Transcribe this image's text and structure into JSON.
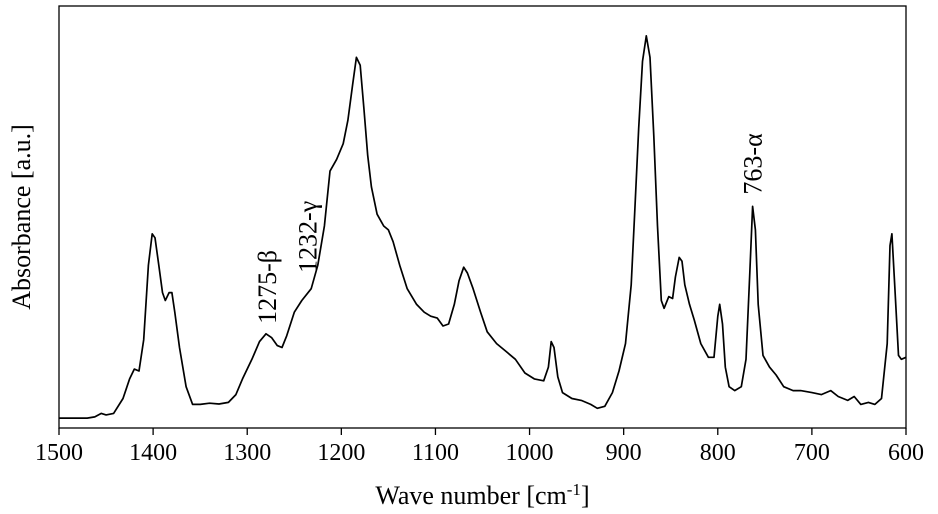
{
  "chart_data": {
    "type": "line",
    "title": "",
    "xlabel": {
      "text": "Wave number [cm",
      "sup": "-1",
      "suffix": "]"
    },
    "ylabel": "Absorbance [a.u.]",
    "xlim": [
      1500,
      600
    ],
    "x_reversed": true,
    "ylim": [
      0,
      1
    ],
    "grid": false,
    "legend": "none",
    "x_ticks": [
      1500,
      1400,
      1300,
      1200,
      1100,
      1000,
      900,
      800,
      700,
      600
    ],
    "x_tick_labels": [
      "1500",
      "1400",
      "1300",
      "1200",
      "1100",
      "1000",
      "900",
      "800",
      "700",
      "600"
    ],
    "series": [
      {
        "color": "#000000",
        "points": [
          [
            1500,
            0.01
          ],
          [
            1470,
            0.01
          ],
          [
            1462,
            0.013
          ],
          [
            1455,
            0.022
          ],
          [
            1450,
            0.018
          ],
          [
            1442,
            0.022
          ],
          [
            1432,
            0.06
          ],
          [
            1425,
            0.11
          ],
          [
            1420,
            0.135
          ],
          [
            1415,
            0.13
          ],
          [
            1410,
            0.21
          ],
          [
            1405,
            0.4
          ],
          [
            1401,
            0.48
          ],
          [
            1398,
            0.47
          ],
          [
            1394,
            0.4
          ],
          [
            1390,
            0.33
          ],
          [
            1387,
            0.31
          ],
          [
            1383,
            0.33
          ],
          [
            1380,
            0.33
          ],
          [
            1377,
            0.28
          ],
          [
            1372,
            0.19
          ],
          [
            1365,
            0.09
          ],
          [
            1358,
            0.045
          ],
          [
            1350,
            0.045
          ],
          [
            1340,
            0.048
          ],
          [
            1330,
            0.046
          ],
          [
            1320,
            0.05
          ],
          [
            1312,
            0.07
          ],
          [
            1305,
            0.11
          ],
          [
            1295,
            0.16
          ],
          [
            1287,
            0.205
          ],
          [
            1280,
            0.225
          ],
          [
            1274,
            0.215
          ],
          [
            1268,
            0.195
          ],
          [
            1263,
            0.19
          ],
          [
            1258,
            0.22
          ],
          [
            1250,
            0.28
          ],
          [
            1242,
            0.31
          ],
          [
            1232,
            0.34
          ],
          [
            1225,
            0.4
          ],
          [
            1218,
            0.5
          ],
          [
            1212,
            0.64
          ],
          [
            1205,
            0.67
          ],
          [
            1198,
            0.71
          ],
          [
            1193,
            0.77
          ],
          [
            1188,
            0.86
          ],
          [
            1184,
            0.93
          ],
          [
            1180,
            0.91
          ],
          [
            1176,
            0.8
          ],
          [
            1172,
            0.68
          ],
          [
            1168,
            0.6
          ],
          [
            1162,
            0.53
          ],
          [
            1155,
            0.5
          ],
          [
            1150,
            0.49
          ],
          [
            1145,
            0.46
          ],
          [
            1138,
            0.4
          ],
          [
            1130,
            0.34
          ],
          [
            1120,
            0.3
          ],
          [
            1112,
            0.28
          ],
          [
            1105,
            0.27
          ],
          [
            1098,
            0.265
          ],
          [
            1092,
            0.245
          ],
          [
            1086,
            0.25
          ],
          [
            1080,
            0.3
          ],
          [
            1075,
            0.36
          ],
          [
            1070,
            0.395
          ],
          [
            1066,
            0.38
          ],
          [
            1060,
            0.34
          ],
          [
            1052,
            0.28
          ],
          [
            1045,
            0.23
          ],
          [
            1035,
            0.2
          ],
          [
            1025,
            0.18
          ],
          [
            1015,
            0.16
          ],
          [
            1005,
            0.125
          ],
          [
            995,
            0.11
          ],
          [
            985,
            0.105
          ],
          [
            980,
            0.14
          ],
          [
            977,
            0.205
          ],
          [
            974,
            0.19
          ],
          [
            970,
            0.115
          ],
          [
            965,
            0.075
          ],
          [
            955,
            0.06
          ],
          [
            945,
            0.055
          ],
          [
            935,
            0.045
          ],
          [
            928,
            0.035
          ],
          [
            920,
            0.04
          ],
          [
            912,
            0.075
          ],
          [
            905,
            0.13
          ],
          [
            898,
            0.2
          ],
          [
            892,
            0.35
          ],
          [
            888,
            0.55
          ],
          [
            884,
            0.75
          ],
          [
            880,
            0.92
          ],
          [
            876,
            0.985
          ],
          [
            872,
            0.93
          ],
          [
            868,
            0.73
          ],
          [
            864,
            0.5
          ],
          [
            860,
            0.31
          ],
          [
            857,
            0.29
          ],
          [
            852,
            0.32
          ],
          [
            848,
            0.315
          ],
          [
            845,
            0.37
          ],
          [
            841,
            0.42
          ],
          [
            838,
            0.41
          ],
          [
            835,
            0.35
          ],
          [
            830,
            0.3
          ],
          [
            825,
            0.26
          ],
          [
            818,
            0.2
          ],
          [
            810,
            0.165
          ],
          [
            804,
            0.165
          ],
          [
            800,
            0.27
          ],
          [
            798,
            0.3
          ],
          [
            795,
            0.25
          ],
          [
            792,
            0.14
          ],
          [
            788,
            0.09
          ],
          [
            782,
            0.08
          ],
          [
            775,
            0.09
          ],
          [
            770,
            0.16
          ],
          [
            766,
            0.38
          ],
          [
            763,
            0.55
          ],
          [
            760,
            0.49
          ],
          [
            757,
            0.3
          ],
          [
            752,
            0.17
          ],
          [
            745,
            0.14
          ],
          [
            738,
            0.12
          ],
          [
            730,
            0.09
          ],
          [
            720,
            0.08
          ],
          [
            712,
            0.08
          ],
          [
            700,
            0.075
          ],
          [
            690,
            0.07
          ],
          [
            680,
            0.08
          ],
          [
            672,
            0.065
          ],
          [
            662,
            0.055
          ],
          [
            655,
            0.065
          ],
          [
            648,
            0.045
          ],
          [
            640,
            0.05
          ],
          [
            633,
            0.045
          ],
          [
            626,
            0.06
          ],
          [
            620,
            0.2
          ],
          [
            617,
            0.45
          ],
          [
            615,
            0.48
          ],
          [
            612,
            0.35
          ],
          [
            608,
            0.17
          ],
          [
            605,
            0.16
          ],
          [
            600,
            0.165
          ]
        ]
      }
    ],
    "annotations": [
      {
        "text": "1275-β",
        "x": 1278,
        "y": 0.24
      },
      {
        "text": "1232-γ",
        "x": 1235,
        "y": 0.37
      },
      {
        "text": "763-α",
        "x": 762,
        "y": 0.57
      }
    ]
  }
}
